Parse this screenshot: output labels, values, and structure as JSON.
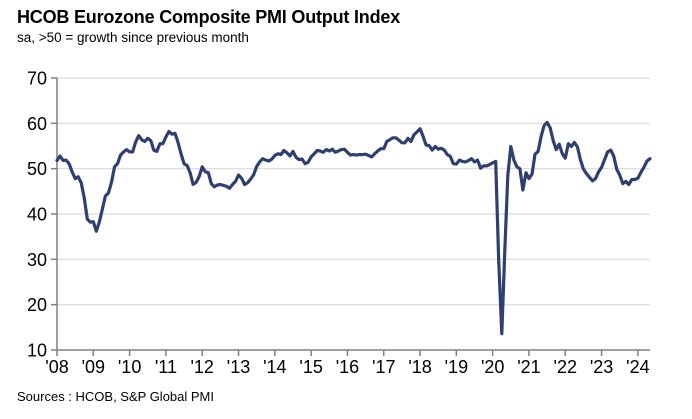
{
  "header": {
    "title": "HCOB Eurozone Composite PMI Output Index",
    "subtitle": "sa, >50 = growth since previous month"
  },
  "footer": {
    "source": "Sources : HCOB, S&P Global PMI"
  },
  "chart_data": {
    "type": "line",
    "title": "HCOB Eurozone Composite PMI Output Index",
    "subtitle": "sa, >50 = growth since previous month",
    "xlabel": "",
    "ylabel": "",
    "ylim": [
      10,
      70
    ],
    "y_ticks": [
      10,
      20,
      30,
      40,
      50,
      60,
      70
    ],
    "x_tick_labels": [
      "'08",
      "'09",
      "'10",
      "'11",
      "'12",
      "'13",
      "'14",
      "'15",
      "'16",
      "'17",
      "'18",
      "'19",
      "'20",
      "'21",
      "'22",
      "'23",
      "'24"
    ],
    "grid": "horizontal gridlines every 10 units, legend off",
    "colors": {
      "line": "#2F4070",
      "grid": "#D9D9D9",
      "axis": "#808080",
      "text": "#000000"
    },
    "series": [
      {
        "name": "Eurozone Composite PMI Output Index",
        "frequency": "monthly",
        "start": "2008-01",
        "end": "2024-05",
        "values": [
          51.8,
          52.8,
          51.8,
          51.9,
          51.1,
          49.3,
          47.8,
          48.2,
          46.9,
          43.6,
          38.9,
          38.2,
          38.3,
          36.2,
          38.3,
          41.1,
          44.0,
          44.6,
          47.0,
          50.4,
          51.1,
          53.0,
          53.7,
          54.2,
          53.7,
          53.7,
          55.9,
          57.3,
          56.4,
          56.0,
          56.7,
          56.2,
          54.1,
          53.8,
          55.5,
          55.5,
          57.0,
          58.2,
          57.6,
          57.8,
          55.8,
          53.3,
          51.1,
          50.7,
          49.1,
          46.5,
          47.0,
          48.3,
          50.4,
          49.3,
          49.1,
          46.7,
          46.0,
          46.4,
          46.5,
          46.3,
          46.1,
          45.7,
          46.5,
          47.2,
          48.6,
          47.9,
          46.5,
          46.9,
          47.7,
          48.7,
          50.5,
          51.5,
          52.2,
          51.9,
          51.7,
          52.1,
          52.9,
          53.3,
          53.1,
          54.0,
          53.5,
          52.8,
          53.8,
          52.5,
          52.0,
          52.1,
          51.1,
          51.4,
          52.6,
          53.3,
          54.0,
          53.9,
          53.6,
          54.2,
          53.9,
          54.3,
          53.6,
          53.9,
          54.2,
          54.3,
          53.6,
          53.0,
          53.1,
          53.0,
          53.1,
          53.1,
          53.2,
          52.9,
          52.6,
          53.3,
          53.9,
          54.4,
          54.4,
          56.0,
          56.4,
          56.8,
          56.8,
          56.3,
          55.7,
          55.7,
          56.7,
          56.0,
          57.5,
          58.1,
          58.8,
          57.1,
          55.2,
          55.1,
          54.1,
          54.9,
          54.3,
          54.5,
          54.1,
          53.1,
          52.7,
          51.1,
          51.0,
          51.9,
          51.6,
          51.5,
          51.8,
          52.2,
          51.5,
          51.9,
          50.1,
          50.6,
          50.6,
          50.9,
          51.3,
          51.6,
          29.7,
          13.6,
          31.9,
          48.5,
          54.9,
          51.9,
          50.4,
          50.0,
          45.3,
          49.1,
          47.8,
          48.8,
          53.2,
          53.8,
          57.1,
          59.5,
          60.2,
          59.0,
          56.2,
          54.2,
          55.4,
          53.3,
          52.3,
          55.5,
          54.9,
          55.8,
          54.8,
          52.0,
          49.9,
          48.9,
          48.1,
          47.3,
          47.8,
          49.3,
          50.3,
          52.0,
          53.7,
          54.1,
          52.8,
          49.9,
          48.6,
          46.7,
          47.2,
          46.5,
          47.6,
          47.6,
          47.9,
          49.2,
          50.3,
          51.7,
          52.2
        ]
      }
    ],
    "source": "Sources : HCOB, S&P Global PMI"
  }
}
